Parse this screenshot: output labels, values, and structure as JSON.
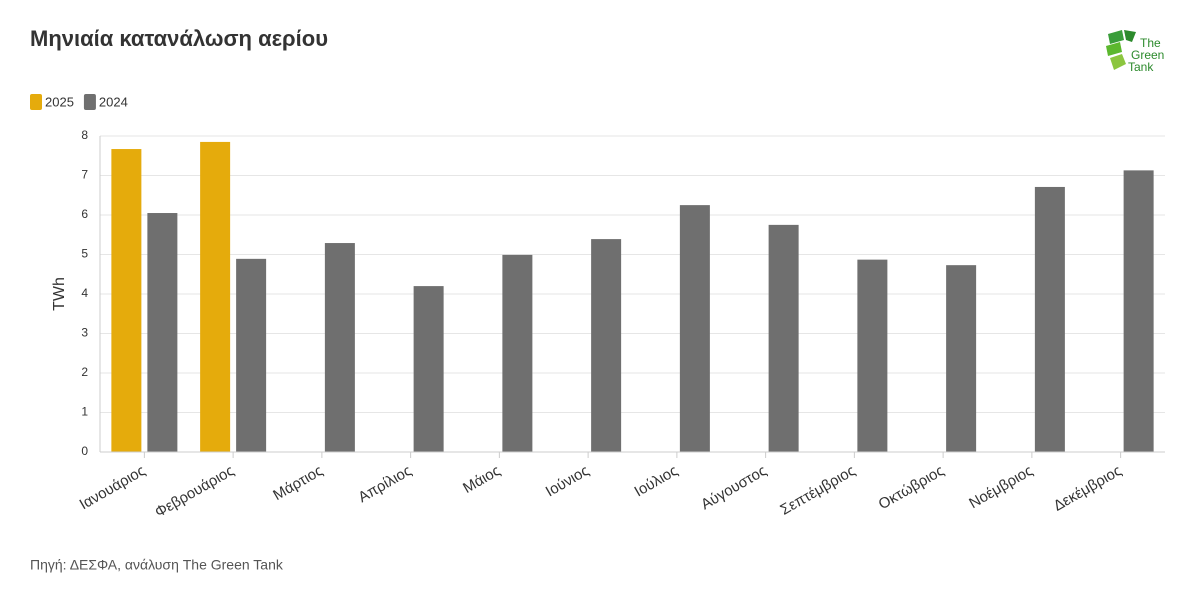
{
  "chart_data": {
    "type": "bar",
    "title": "Μηνιαία κατανάλωση αερίου",
    "y_label": "TWh",
    "source": "Πηγή: ΔΕΣΦΑ, ανάλυση The Green Tank",
    "logo": [
      "The",
      "Green",
      "Tank"
    ],
    "categories": [
      "Ιανουάριος",
      "Φεβρουάριος",
      "Μάρτιος",
      "Απρίλιος",
      "Μάιος",
      "Ιούνιος",
      "Ιούλιος",
      "Αύγουστος",
      "Σεπτέμβριος",
      "Οκτώβριος",
      "Νοέμβριος",
      "Δεκέμβριος"
    ],
    "series": [
      {
        "name": "2025",
        "color": "#e5ab0c",
        "values": [
          7.67,
          7.85,
          null,
          null,
          null,
          null,
          null,
          null,
          null,
          null,
          null,
          null
        ]
      },
      {
        "name": "2024",
        "color": "#6f6f6f",
        "values": [
          6.05,
          4.89,
          5.29,
          4.2,
          4.99,
          5.39,
          6.25,
          5.75,
          4.87,
          4.73,
          6.71,
          7.13
        ]
      }
    ],
    "ylim": [
      0,
      8
    ],
    "yticks": [
      0,
      1,
      2,
      3,
      4,
      5,
      6,
      7,
      8
    ],
    "grid": true
  }
}
